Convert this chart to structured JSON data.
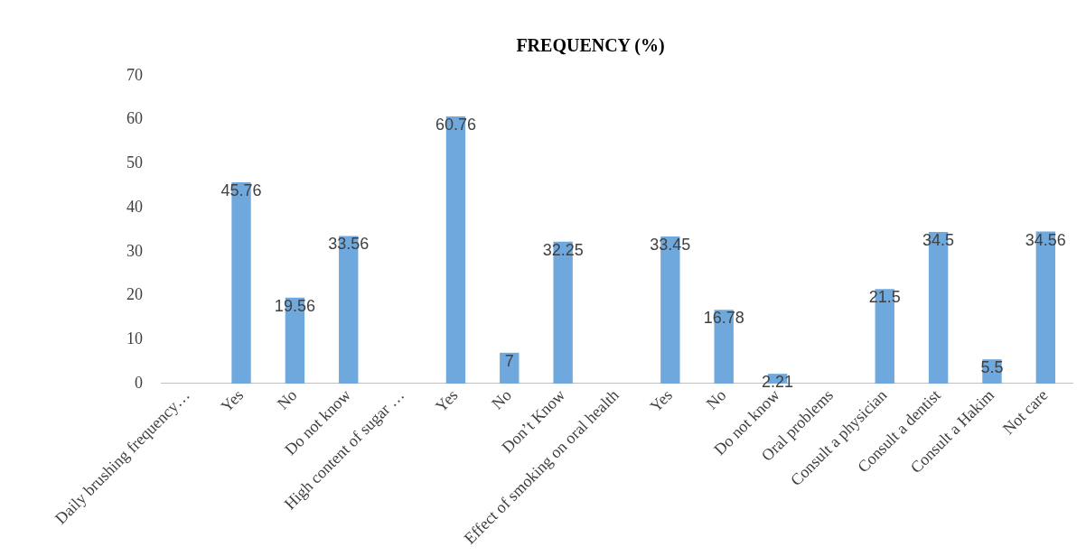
{
  "chart_data": {
    "type": "bar",
    "title": "FREQUENCY (%)",
    "categories": [
      "Daily brushing frequency…",
      "Yes",
      "No",
      "Do not know",
      "High content of sugar …",
      "Yes",
      "No",
      "Don’t Know",
      "Effect of smoking on oral health",
      "Yes",
      "No",
      "Do not know",
      "Oral problems",
      "Consult a physician",
      "Consult a dentist",
      "Consult a Hakim",
      "Not care"
    ],
    "values": [
      null,
      45.76,
      19.56,
      33.56,
      null,
      60.76,
      7,
      32.25,
      null,
      33.45,
      16.78,
      2.21,
      null,
      21.5,
      34.5,
      5.5,
      34.56
    ],
    "color": "#6fa8dc",
    "data_labels": true,
    "ylim": [
      0,
      70
    ],
    "yticks": [
      0,
      10,
      20,
      30,
      40,
      50,
      60,
      70
    ],
    "grid": false,
    "legend": false
  }
}
